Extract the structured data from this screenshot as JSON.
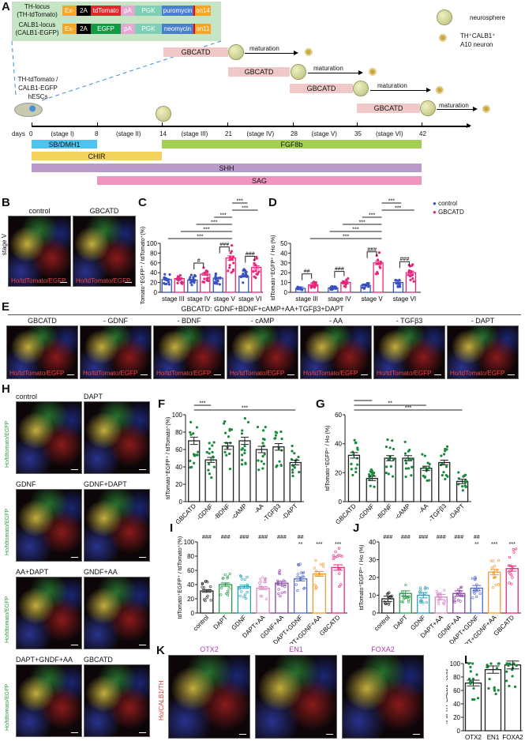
{
  "panel_labels": {
    "A": "A",
    "B": "B",
    "C": "C",
    "D": "D",
    "E": "E",
    "F": "F",
    "G": "G",
    "H": "H",
    "I": "I",
    "J": "J",
    "K": "K",
    "L": "L"
  },
  "panelA": {
    "th_locus": "TH-locus",
    "th_locus_sub": "(TH-tdTomato)",
    "calb_locus": "CALB1-locus",
    "calb_locus_sub": "(CALB1-EGFP)",
    "construct_th": [
      "Ex-",
      "2A",
      "tdTomato",
      "pA",
      "PGK",
      "puromycin",
      "on14"
    ],
    "construct_calb": [
      "Ex-",
      "2A",
      "EGFP",
      "pA",
      "PGK",
      "neomycin",
      "on11"
    ],
    "cells_label": [
      "TH-tdTomato /",
      "CALB1-EGFP",
      "hESCs"
    ],
    "legend_neurosphere": "neurosphere",
    "legend_neuron": "TH⁺CALB1⁺",
    "legend_neuron2": "A10 neuron",
    "gbcatd": "GBCATD",
    "maturation": "maturation",
    "days_label": "days",
    "days": [
      "0",
      "8",
      "14",
      "21",
      "28",
      "35",
      "42"
    ],
    "stages": [
      "(stage I)",
      "(stage II)",
      "(stage III)",
      "(stage IV)",
      "(stage V)",
      "(stage VI)"
    ],
    "factors": {
      "sb": "SB/DMH1",
      "fgf": "FGF8b",
      "chir": "CHIR",
      "shh": "SHH",
      "sag": "SAG"
    },
    "colors": {
      "sb": "#4fc3ef",
      "fgf": "#a4cf55",
      "chir": "#f3d35b",
      "shh": "#b99ac9",
      "sag": "#ee94bf",
      "box": "#c6e5c4"
    }
  },
  "panelB": {
    "stage": "stage V",
    "images": [
      "control",
      "GBCATD"
    ],
    "caption": "Ho/tdTomato/EGFP"
  },
  "legend": {
    "control": "control",
    "gbcatd": "GBCATD",
    "control_color": "#3a50c0",
    "gbcatd_color": "#e8267a"
  },
  "panelE": {
    "title": "GBCATD: GDNF+BDNF+cAMP+AA+TGFβ3+DAPT",
    "images": [
      "GBCATD",
      "- GDNF",
      "- BDNF",
      "- cAMP",
      "- AA",
      "- TGFβ3",
      "- DAPT"
    ],
    "caption": "Ho/tdTomato/EGFP"
  },
  "panelH": {
    "images": [
      "control",
      "DAPT",
      "GDNF",
      "GDNF+DAPT",
      "AA+DAPT",
      "GNDF+AA",
      "DAPT+GNDF+AA",
      "GBCATD"
    ],
    "caption": "Ho/tdtomato/EGFP"
  },
  "panelK": {
    "images": [
      "OTX2",
      "EN1",
      "FOXA2"
    ],
    "caption": "Ho/CALB1/TH"
  },
  "chart_data": [
    {
      "id": "C",
      "type": "bar",
      "ylabel": "tdTomato⁺EGFP⁺ / tdTomato⁺(%)",
      "ylim": [
        0,
        100
      ],
      "yticks": [
        0,
        20,
        40,
        60,
        80,
        100
      ],
      "categories": [
        "stage III",
        "stage IV",
        "stage V",
        "stage VI"
      ],
      "series": [
        {
          "name": "control",
          "values": [
            26,
            25,
            29,
            33
          ]
        },
        {
          "name": "GBCATD",
          "values": [
            28,
            37,
            70,
            51
          ]
        }
      ],
      "within": [
        "",
        "#",
        "###",
        "###"
      ],
      "brackets": [
        "***",
        "***",
        "***",
        "***",
        "***",
        "***"
      ]
    },
    {
      "id": "D",
      "type": "bar",
      "ylabel": "tdTomato⁺EGFP⁺ / Ho (%)",
      "ylim": [
        0,
        50
      ],
      "yticks": [
        0,
        10,
        20,
        30,
        40,
        50
      ],
      "categories": [
        "stage III",
        "stage IV",
        "stage V",
        "stage VI"
      ],
      "series": [
        {
          "name": "control",
          "values": [
            4,
            4.5,
            7,
            10
          ]
        },
        {
          "name": "GBCATD",
          "values": [
            7.5,
            10,
            30,
            20
          ]
        }
      ],
      "within": [
        "##",
        "###",
        "###",
        "###"
      ],
      "brackets": [
        "***",
        "***",
        "***",
        "***",
        "***",
        "***"
      ]
    },
    {
      "id": "F",
      "type": "bar",
      "ylabel": "tdTomato⁺EGFP⁺ / tdTomato⁺(%)",
      "ylim": [
        0,
        100
      ],
      "yticks": [
        0,
        20,
        40,
        60,
        80,
        100
      ],
      "categories": [
        "GBCATD",
        "-GDNF",
        "-BDNF",
        "-cAMP",
        "-AA",
        "-TGFβ3",
        "-DAPT"
      ],
      "values": [
        70,
        48,
        64,
        70,
        60,
        63,
        45
      ],
      "brackets": [
        "***",
        "***"
      ]
    },
    {
      "id": "G",
      "type": "bar",
      "ylabel": "tdTomato⁺EGFP⁺ / Ho (%)",
      "ylim": [
        0,
        60
      ],
      "yticks": [
        0,
        20,
        40,
        60
      ],
      "categories": [
        "GBCATD",
        "-GDNF",
        "-BDNF",
        "-cAMP",
        "-AA",
        "-TGFβ3",
        "-DAPT"
      ],
      "values": [
        32,
        16,
        30,
        30,
        23,
        27,
        14
      ],
      "brackets": [
        "***",
        "**",
        "***"
      ]
    },
    {
      "id": "I",
      "type": "bar",
      "ylabel": "tdTomato⁺EGFP⁺ / tdTomato⁺(%)",
      "ylim": [
        0,
        100
      ],
      "yticks": [
        0,
        20,
        40,
        60,
        80,
        100
      ],
      "categories": [
        "control",
        "DAPT",
        "GDNF",
        "DAPT+AA",
        "GDNF+AA",
        "DAPT+GDNF",
        "DAPT+GDNF+AA",
        "GBCATD"
      ],
      "values": [
        31,
        40,
        37,
        35,
        42,
        48,
        55,
        64
      ],
      "colors": [
        "#222222",
        "#2a9a4a",
        "#2aa0b8",
        "#d68ac4",
        "#8a45a8",
        "#5068c8",
        "#f39a30",
        "#e8267a"
      ],
      "sig_hash": [
        "###",
        "###",
        "###",
        "###",
        "###",
        "##",
        "",
        ""
      ],
      "sig_star": [
        "",
        "",
        "",
        "",
        "",
        "**",
        "***",
        "***"
      ]
    },
    {
      "id": "J",
      "type": "bar",
      "ylabel": "tdTomato⁺EGFP⁺ / Ho (%)",
      "ylim": [
        0,
        40
      ],
      "yticks": [
        0,
        10,
        20,
        30,
        40
      ],
      "categories": [
        "control",
        "DAPT",
        "GDNF",
        "DAPT+AA",
        "GDNF+AA",
        "DAPT+GDNF",
        "DAPT+GDNF+AA",
        "GBCATD"
      ],
      "values": [
        8,
        11,
        10,
        9,
        11,
        14,
        23,
        25
      ],
      "colors": [
        "#222222",
        "#2a9a4a",
        "#2aa0b8",
        "#d68ac4",
        "#8a45a8",
        "#5068c8",
        "#f39a30",
        "#e8267a"
      ],
      "sig_hash": [
        "###",
        "###",
        "###",
        "###",
        "###",
        "##",
        "",
        ""
      ],
      "sig_star": [
        "",
        "",
        "",
        "",
        "",
        "**",
        "***",
        "***"
      ]
    },
    {
      "id": "L",
      "type": "bar",
      "ylabel": "% of TH⁺CALB1⁺ cells",
      "ylim": [
        0,
        100
      ],
      "yticks": [
        0,
        20,
        40,
        60,
        80,
        100
      ],
      "categories": [
        "OTX2",
        "EN1",
        "FOXA2"
      ],
      "values": [
        71,
        91,
        98
      ]
    }
  ]
}
